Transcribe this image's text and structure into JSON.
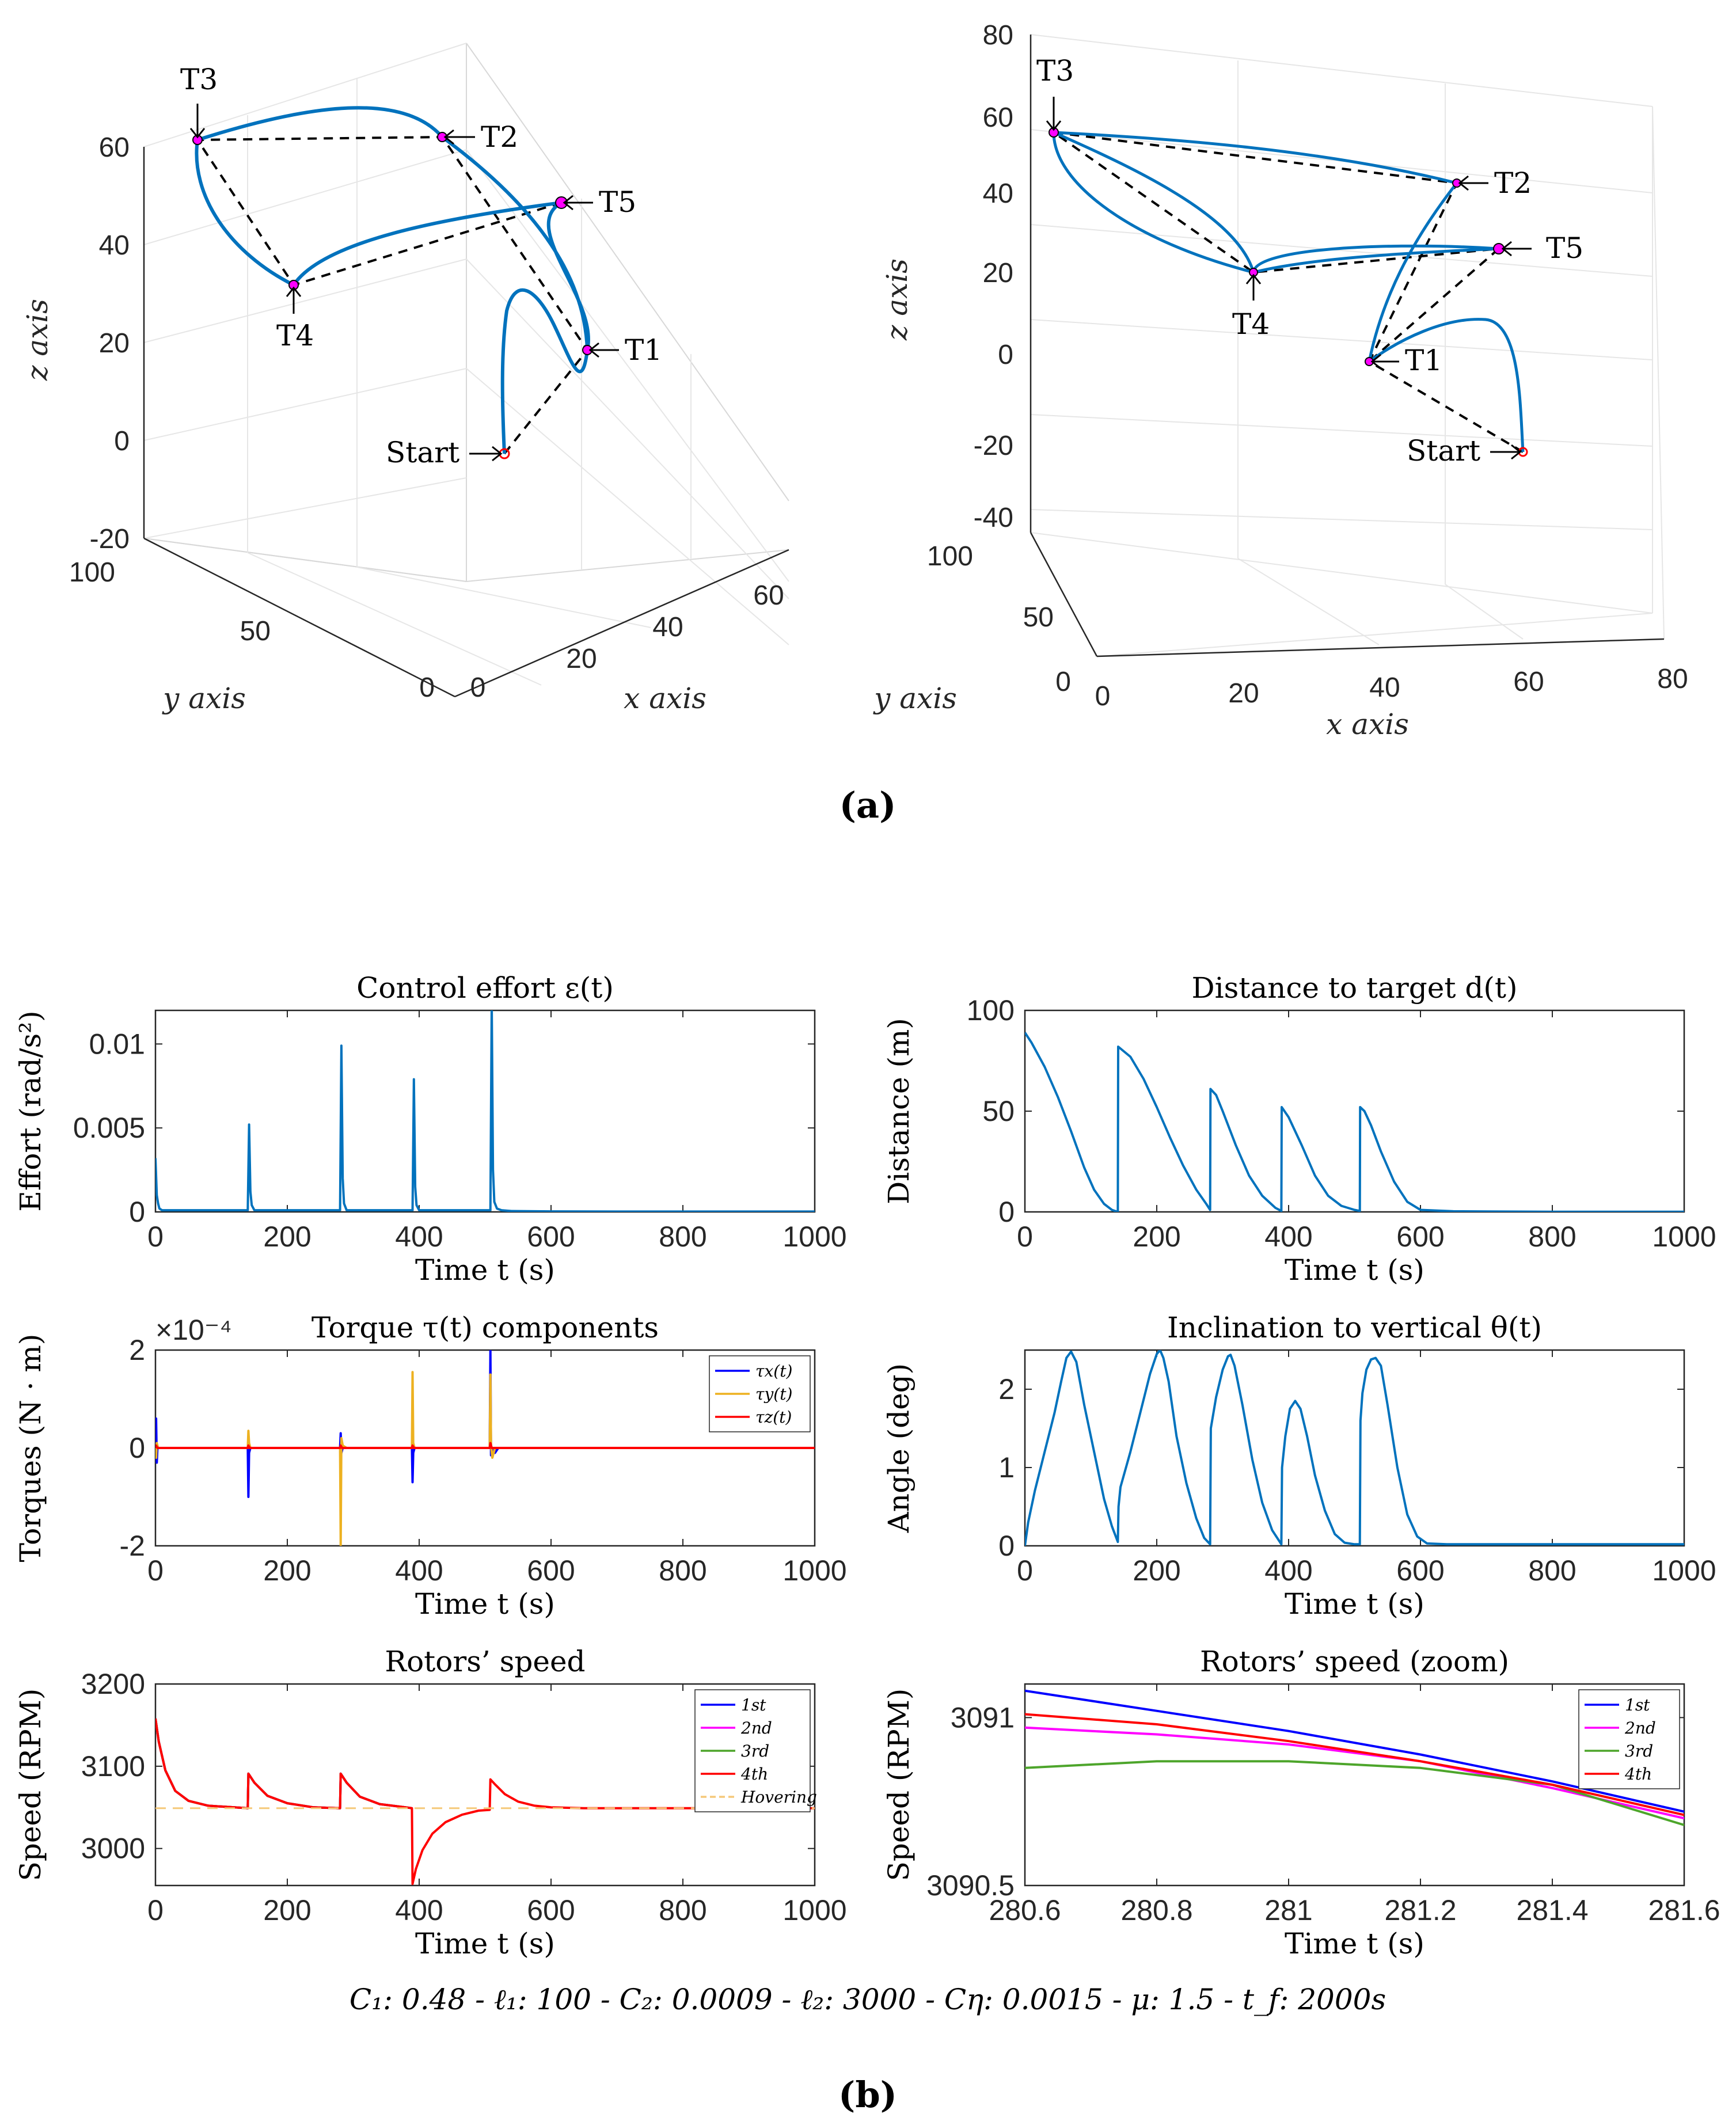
{
  "panel_a": {
    "label": "(a)",
    "targets": [
      "Start",
      "T1",
      "T2",
      "T3",
      "T4",
      "T5"
    ],
    "view_left": {
      "x_ticks": [
        "0",
        "20",
        "40",
        "60"
      ],
      "y_ticks": [
        "0",
        "50",
        "100"
      ],
      "z_ticks": [
        "-20",
        "0",
        "20",
        "40",
        "60"
      ],
      "xlabel": "x axis",
      "ylabel": "y axis",
      "zlabel": "z axis"
    },
    "view_right": {
      "x_ticks": [
        "0",
        "20",
        "40",
        "60",
        "80"
      ],
      "y_ticks": [
        "0",
        "50",
        "100"
      ],
      "z_ticks": [
        "-40",
        "-20",
        "0",
        "20",
        "40",
        "60",
        "80"
      ],
      "xlabel": "x axis",
      "ylabel": "y axis",
      "zlabel": "z axis"
    }
  },
  "panel_b": {
    "label": "(b)",
    "caption": "C₁: 0.48 - ℓ₁: 100 - C₂: 0.0009 - ℓ₂: 3000 - Cη: 0.0015 - μ: 1.5 - t_f: 2000s"
  },
  "colors": {
    "trajectory": "#0072BD",
    "target": "#FF00FF",
    "start": "#FF0000",
    "dashed": "#000000",
    "tx": "#0000FF",
    "ty": "#EDB120",
    "tz": "#FF0000",
    "r1": "#0000FF",
    "r2": "#FF00FF",
    "r3": "#4DA52B",
    "r4": "#FF0000",
    "hover": "#F5C97A"
  },
  "chart_data": [
    {
      "type": "line",
      "title": "Control effort ε(t)",
      "xlabel": "Time t (s)",
      "ylabel": "Effort (rad/s²)",
      "xlim": [
        0,
        1000
      ],
      "ylim": [
        0,
        0.012
      ],
      "xticks": [
        0,
        200,
        400,
        600,
        800,
        1000
      ],
      "xtick_labels": [
        "0",
        "200",
        "400",
        "600",
        "800",
        "1000"
      ],
      "yticks": [
        0,
        0.005,
        0.01
      ],
      "ytick_labels": [
        "0",
        "0.005",
        "0.01"
      ],
      "series": [
        {
          "name": "ε(t)",
          "x": [
            0,
            2,
            4,
            6,
            10,
            15,
            20,
            25,
            140,
            142,
            144,
            146,
            150,
            155,
            280,
            282,
            284,
            286,
            290,
            295,
            390,
            392,
            394,
            396,
            400,
            405,
            508,
            510,
            512,
            514,
            518,
            525,
            540,
            600,
            700,
            800,
            900,
            1000
          ],
          "y": [
            0.0032,
            0.001,
            0.0005,
            0.0002,
            0.0001,
            0.0001,
            0.0001,
            0.0001,
            0.0001,
            0.0052,
            0.0012,
            0.0004,
            0.0001,
            0.0001,
            0.0001,
            0.0099,
            0.002,
            0.0005,
            0.0001,
            0.0001,
            0.0001,
            0.0079,
            0.0015,
            0.0004,
            0.0001,
            0.0001,
            0.0001,
            0.0125,
            0.0025,
            0.0006,
            0.0002,
            0.0001,
            5e-05,
            3e-05,
            2e-05,
            2e-05,
            2e-05,
            2e-05
          ]
        }
      ]
    },
    {
      "type": "line",
      "title": "Distance to target d(t)",
      "xlabel": "Time t (s)",
      "ylabel": "Distance (m)",
      "xlim": [
        0,
        1000
      ],
      "ylim": [
        0,
        100
      ],
      "xticks": [
        0,
        200,
        400,
        600,
        800,
        1000
      ],
      "xtick_labels": [
        "0",
        "200",
        "400",
        "600",
        "800",
        "1000"
      ],
      "yticks": [
        0,
        50,
        100
      ],
      "ytick_labels": [
        "0",
        "50",
        "100"
      ],
      "series": [
        {
          "name": "d(t)",
          "x": [
            0,
            10,
            30,
            50,
            70,
            90,
            105,
            120,
            132,
            141,
            141.5,
            160,
            180,
            200,
            220,
            240,
            260,
            275,
            281,
            281.5,
            290,
            300,
            320,
            340,
            360,
            380,
            389,
            389.5,
            400,
            420,
            440,
            460,
            480,
            500,
            508,
            508.5,
            515,
            525,
            540,
            560,
            580,
            600,
            650,
            700,
            800,
            900,
            1000
          ],
          "y": [
            89,
            84,
            72,
            57,
            40,
            22,
            11,
            4,
            1,
            0,
            82,
            77,
            66,
            52,
            37,
            23,
            11,
            4,
            1,
            61,
            58,
            50,
            33,
            18,
            8,
            2,
            0.5,
            52,
            47,
            33,
            18,
            8,
            3,
            1,
            0.5,
            52,
            50,
            43,
            30,
            15,
            5,
            1,
            0.3,
            0.2,
            0.1,
            0.1,
            0.1
          ]
        }
      ]
    },
    {
      "type": "line",
      "title": "Torque τ(t) components",
      "xlabel": "Time t (s)",
      "ylabel": "Torques (N · m)",
      "exponent": "×10⁻⁴",
      "xlim": [
        0,
        1000
      ],
      "ylim": [
        -2,
        2
      ],
      "xticks": [
        0,
        200,
        400,
        600,
        800,
        1000
      ],
      "xtick_labels": [
        "0",
        "200",
        "400",
        "600",
        "800",
        "1000"
      ],
      "yticks": [
        -2,
        0,
        2
      ],
      "ytick_labels": [
        "-2",
        "0",
        "2"
      ],
      "legend": [
        "τx(t)",
        "τy(t)",
        "τz(t)"
      ],
      "legend_position": "top-right",
      "series": [
        {
          "name": "τx(t)",
          "x": [
            0,
            1,
            2,
            3,
            6,
            140,
            141,
            142,
            144,
            150,
            280,
            281,
            282,
            284,
            290,
            389,
            390,
            391,
            393,
            400,
            507,
            508,
            509,
            511,
            515,
            520,
            1000
          ],
          "y": [
            0,
            0.6,
            -0.3,
            0,
            0,
            0,
            -1.0,
            -0.1,
            0,
            0,
            0,
            0.3,
            -0.1,
            0,
            0,
            0,
            -0.7,
            -0.1,
            0,
            0,
            0,
            2.0,
            -0.15,
            0,
            -0.1,
            0,
            0
          ]
        },
        {
          "name": "τy(t)",
          "x": [
            0,
            1,
            2,
            4,
            140,
            141,
            142,
            144,
            280,
            281,
            282,
            284,
            290,
            389,
            390,
            391,
            393,
            507,
            508,
            509,
            511,
            515,
            1000
          ],
          "y": [
            0,
            -0.2,
            0.1,
            0,
            0,
            0.35,
            0.1,
            0,
            0,
            -2.0,
            0.2,
            0.05,
            0,
            0,
            1.55,
            0.1,
            0,
            0,
            1.5,
            0.05,
            -0.2,
            0,
            0
          ]
        },
        {
          "name": "τz(t)",
          "x": [
            0,
            1,
            3,
            140,
            141,
            143,
            280,
            281,
            283,
            389,
            390,
            392,
            507,
            508,
            510,
            1000
          ],
          "y": [
            0,
            0.05,
            0,
            0,
            0.05,
            0,
            0,
            0.05,
            0,
            0,
            0.05,
            0,
            0,
            0.1,
            0,
            0
          ]
        }
      ]
    },
    {
      "type": "line",
      "title": "Inclination to vertical θ(t)",
      "xlabel": "Time t (s)",
      "ylabel": "Angle (deg)",
      "xlim": [
        0,
        1000
      ],
      "ylim": [
        0,
        2.5
      ],
      "xticks": [
        0,
        200,
        400,
        600,
        800,
        1000
      ],
      "xtick_labels": [
        "0",
        "200",
        "400",
        "600",
        "800",
        "1000"
      ],
      "yticks": [
        0,
        1,
        2
      ],
      "ytick_labels": [
        "0",
        "1",
        "2"
      ],
      "series": [
        {
          "name": "θ(t)",
          "x": [
            0,
            5,
            15,
            30,
            45,
            55,
            63,
            70,
            78,
            90,
            105,
            120,
            132,
            141,
            142,
            145,
            160,
            175,
            190,
            200,
            205,
            210,
            218,
            230,
            245,
            260,
            272,
            281,
            282,
            290,
            300,
            308,
            312,
            318,
            330,
            345,
            360,
            375,
            389,
            390,
            395,
            402,
            410,
            418,
            428,
            440,
            455,
            470,
            485,
            500,
            508,
            509,
            512,
            518,
            525,
            532,
            540,
            550,
            565,
            580,
            595,
            610,
            640,
            700,
            800,
            900,
            1000
          ],
          "y": [
            0,
            0.3,
            0.7,
            1.2,
            1.7,
            2.1,
            2.4,
            2.48,
            2.35,
            1.8,
            1.2,
            0.6,
            0.25,
            0.05,
            0.5,
            0.75,
            1.2,
            1.7,
            2.2,
            2.45,
            2.5,
            2.4,
            2.1,
            1.4,
            0.8,
            0.35,
            0.1,
            0.02,
            1.5,
            1.9,
            2.25,
            2.42,
            2.44,
            2.3,
            1.8,
            1.1,
            0.55,
            0.2,
            0.02,
            1.0,
            1.4,
            1.75,
            1.85,
            1.75,
            1.4,
            0.9,
            0.45,
            0.15,
            0.04,
            0.02,
            0.02,
            1.6,
            1.95,
            2.25,
            2.38,
            2.4,
            2.3,
            1.8,
            1.0,
            0.4,
            0.12,
            0.03,
            0.02,
            0.02,
            0.02,
            0.02,
            0.02
          ]
        }
      ]
    },
    {
      "type": "line",
      "title": "Rotors’ speed",
      "xlabel": "Time t (s)",
      "ylabel": "Speed (RPM)",
      "xlim": [
        0,
        1000
      ],
      "ylim": [
        2955,
        3200
      ],
      "xticks": [
        0,
        200,
        400,
        600,
        800,
        1000
      ],
      "xtick_labels": [
        "0",
        "200",
        "400",
        "600",
        "800",
        "1000"
      ],
      "yticks": [
        3000,
        3100,
        3200
      ],
      "ytick_labels": [
        "3000",
        "3100",
        "3200"
      ],
      "legend": [
        "1st",
        "2nd",
        "3rd",
        "4th",
        "Hovering"
      ],
      "legend_position": "top-right",
      "series": [
        {
          "name": "1st",
          "x": [
            0,
            5,
            15,
            30,
            50,
            80,
            120,
            140,
            141,
            150,
            170,
            200,
            240,
            280,
            281,
            290,
            310,
            340,
            380,
            389
          ],
          "y": [
            3158,
            3130,
            3095,
            3070,
            3058,
            3052,
            3050,
            3049,
            3091,
            3080,
            3064,
            3055,
            3050,
            3049,
            3091,
            3080,
            3063,
            3054,
            3050,
            3049
          ]
        },
        {
          "name": "2nd",
          "x": [
            0,
            5,
            15,
            30,
            50,
            80,
            120,
            140,
            141,
            150,
            170,
            200,
            240,
            280,
            281,
            290,
            310,
            340,
            380,
            389
          ],
          "y": [
            3158,
            3130,
            3095,
            3070,
            3058,
            3052,
            3050,
            3049,
            3091,
            3080,
            3064,
            3055,
            3050,
            3049,
            3091,
            3080,
            3063,
            3054,
            3050,
            3049
          ]
        },
        {
          "name": "3rd",
          "x": [
            0,
            5,
            15,
            30,
            50,
            80,
            120,
            140,
            141,
            150,
            170,
            200,
            240,
            280,
            281,
            290,
            310,
            340,
            380,
            389
          ],
          "y": [
            3158,
            3130,
            3095,
            3070,
            3058,
            3052,
            3050,
            3049,
            3091,
            3080,
            3064,
            3055,
            3050,
            3049,
            3091,
            3080,
            3063,
            3054,
            3050,
            3049
          ]
        },
        {
          "name": "4th",
          "x": [
            0,
            5,
            15,
            30,
            50,
            80,
            120,
            140,
            141,
            150,
            170,
            200,
            240,
            280,
            281,
            290,
            310,
            340,
            380,
            389,
            390,
            395,
            405,
            420,
            440,
            465,
            490,
            507,
            508,
            515,
            530,
            550,
            575,
            600,
            650,
            700,
            800,
            900,
            1000
          ],
          "y": [
            3158,
            3130,
            3095,
            3070,
            3058,
            3052,
            3050,
            3049,
            3091,
            3080,
            3064,
            3055,
            3050,
            3049,
            3091,
            3080,
            3063,
            3054,
            3050,
            3049,
            2957,
            2975,
            2998,
            3018,
            3032,
            3041,
            3046,
            3047,
            3084,
            3078,
            3066,
            3057,
            3052,
            3050,
            3049,
            3049,
            3049,
            3049,
            3049
          ]
        },
        {
          "name": "Hovering",
          "x": [
            0,
            1000
          ],
          "y": [
            3049,
            3049
          ],
          "dashed": true
        }
      ]
    },
    {
      "type": "line",
      "title": "Rotors’ speed (zoom)",
      "xlabel": "Time t (s)",
      "ylabel": "Speed (RPM)",
      "xlim": [
        280.6,
        281.6
      ],
      "ylim": [
        3090.5,
        3091.1
      ],
      "xticks": [
        280.6,
        280.8,
        281,
        281.2,
        281.4,
        281.6
      ],
      "xtick_labels": [
        "280.6",
        "280.8",
        "281",
        "281.2",
        "281.4",
        "281.6"
      ],
      "yticks": [
        3090.5,
        3091
      ],
      "ytick_labels": [
        "3090.5",
        "3091"
      ],
      "legend": [
        "1st",
        "2nd",
        "3rd",
        "4th"
      ],
      "legend_position": "top-right",
      "series": [
        {
          "name": "1st",
          "x": [
            280.6,
            280.8,
            281.0,
            281.2,
            281.4,
            281.6
          ],
          "y": [
            3091.08,
            3091.02,
            3090.96,
            3090.89,
            3090.81,
            3090.72
          ]
        },
        {
          "name": "2nd",
          "x": [
            280.6,
            280.8,
            281.0,
            281.2,
            281.4,
            281.6
          ],
          "y": [
            3090.97,
            3090.95,
            3090.92,
            3090.87,
            3090.79,
            3090.7
          ]
        },
        {
          "name": "3rd",
          "x": [
            280.6,
            280.8,
            281.0,
            281.2,
            281.4,
            281.6
          ],
          "y": [
            3090.85,
            3090.87,
            3090.87,
            3090.85,
            3090.8,
            3090.68
          ]
        },
        {
          "name": "4th",
          "x": [
            280.6,
            280.8,
            281.0,
            281.2,
            281.4,
            281.6
          ],
          "y": [
            3091.01,
            3090.98,
            3090.93,
            3090.87,
            3090.8,
            3090.71
          ]
        }
      ]
    }
  ]
}
